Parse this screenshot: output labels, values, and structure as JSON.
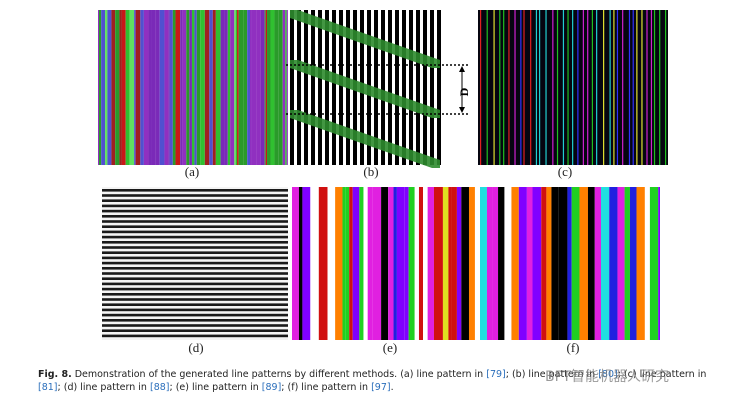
{
  "figure": {
    "panels": [
      {
        "label": "(a)"
      },
      {
        "label": "(b)"
      },
      {
        "label": "(c)"
      },
      {
        "label": "(d)"
      },
      {
        "label": "(e)"
      },
      {
        "label": "(f)"
      }
    ],
    "annotation": "D"
  },
  "caption": {
    "label": "Fig. 8.",
    "segments": [
      {
        "text": " Demonstration of the generated line patterns by different methods. (a) line pattern in "
      },
      {
        "text": "[79]",
        "link": true
      },
      {
        "text": "; (b) line pattern in "
      },
      {
        "text": "[80]",
        "link": true
      },
      {
        "text": "; (c) line pattern in "
      },
      {
        "text": "[81]",
        "link": true
      },
      {
        "text": "; (d) line pattern in "
      },
      {
        "text": "[88]",
        "link": true
      },
      {
        "text": "; (e) line pattern in "
      },
      {
        "text": "[89]",
        "link": true
      },
      {
        "text": "; (f) line pattern in "
      },
      {
        "text": "[97]",
        "link": true
      },
      {
        "text": "."
      }
    ]
  },
  "watermark": "BFT智能机器人研究"
}
